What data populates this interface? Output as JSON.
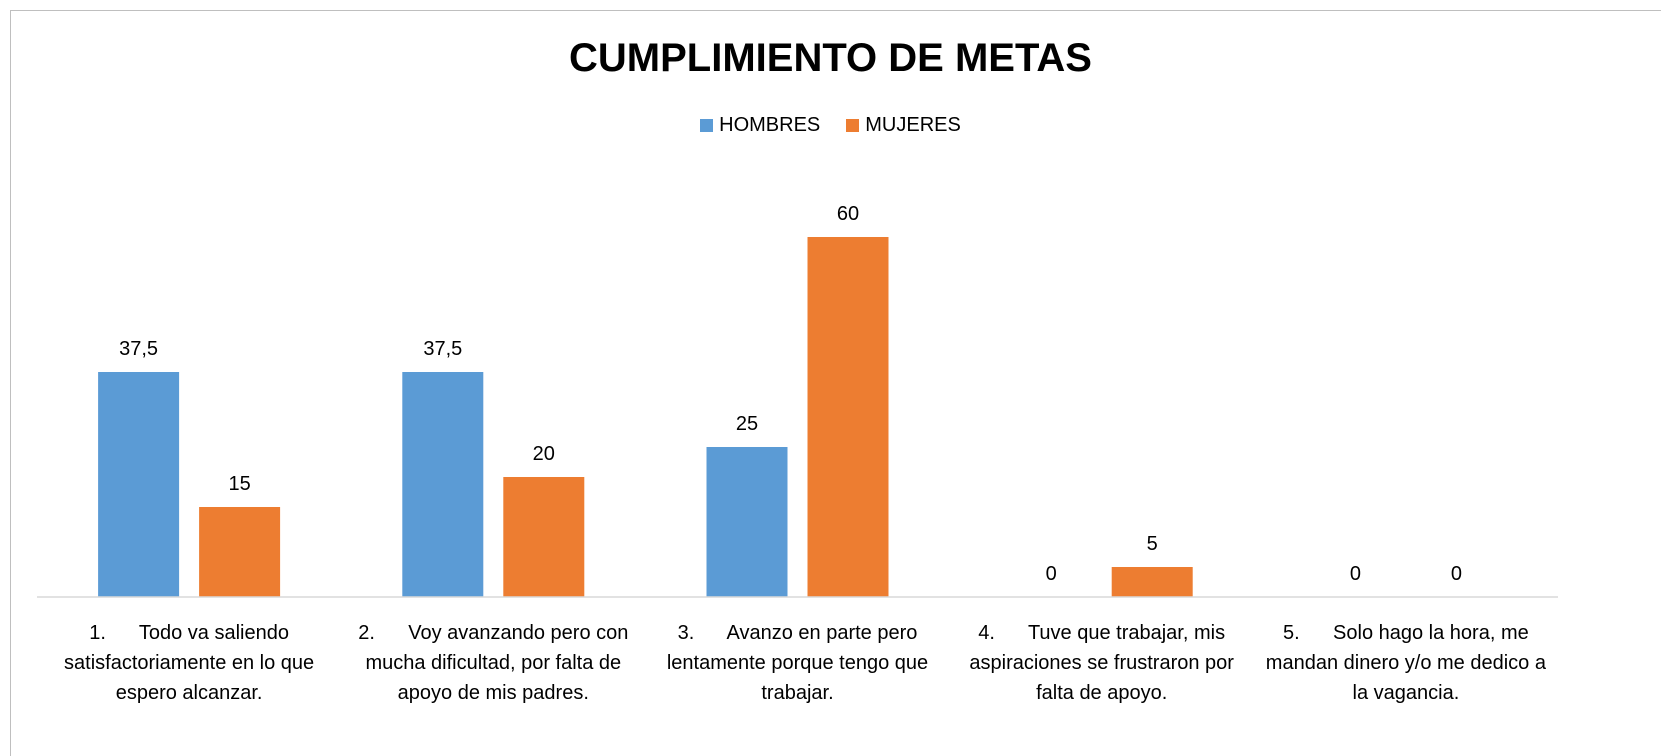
{
  "chart_data": {
    "type": "bar",
    "title": "CUMPLIMIENTO DE METAS",
    "categories": [
      "1.      Todo va saliendo satisfactoriamente en lo que espero alcanzar.",
      "2.      Voy avanzando pero con mucha dificultad, por falta de apoyo de mis padres.",
      "3.      Avanzo en parte pero lentamente porque tengo que trabajar.",
      "4.      Tuve que trabajar, mis aspiraciones se frustraron por falta de apoyo.",
      "5.      Solo hago la hora, me mandan dinero y/o me dedico a la vagancia."
    ],
    "series": [
      {
        "name": "HOMBRES",
        "color": "#5b9bd5",
        "values": [
          37.5,
          37.5,
          25,
          0,
          0
        ],
        "value_labels": [
          "37,5",
          "37,5",
          "25",
          "0",
          "0"
        ]
      },
      {
        "name": "MUJERES",
        "color": "#ed7d31",
        "values": [
          15,
          20,
          60,
          5,
          0
        ]
      }
    ],
    "ylim": [
      0,
      70
    ],
    "legend": "top"
  }
}
